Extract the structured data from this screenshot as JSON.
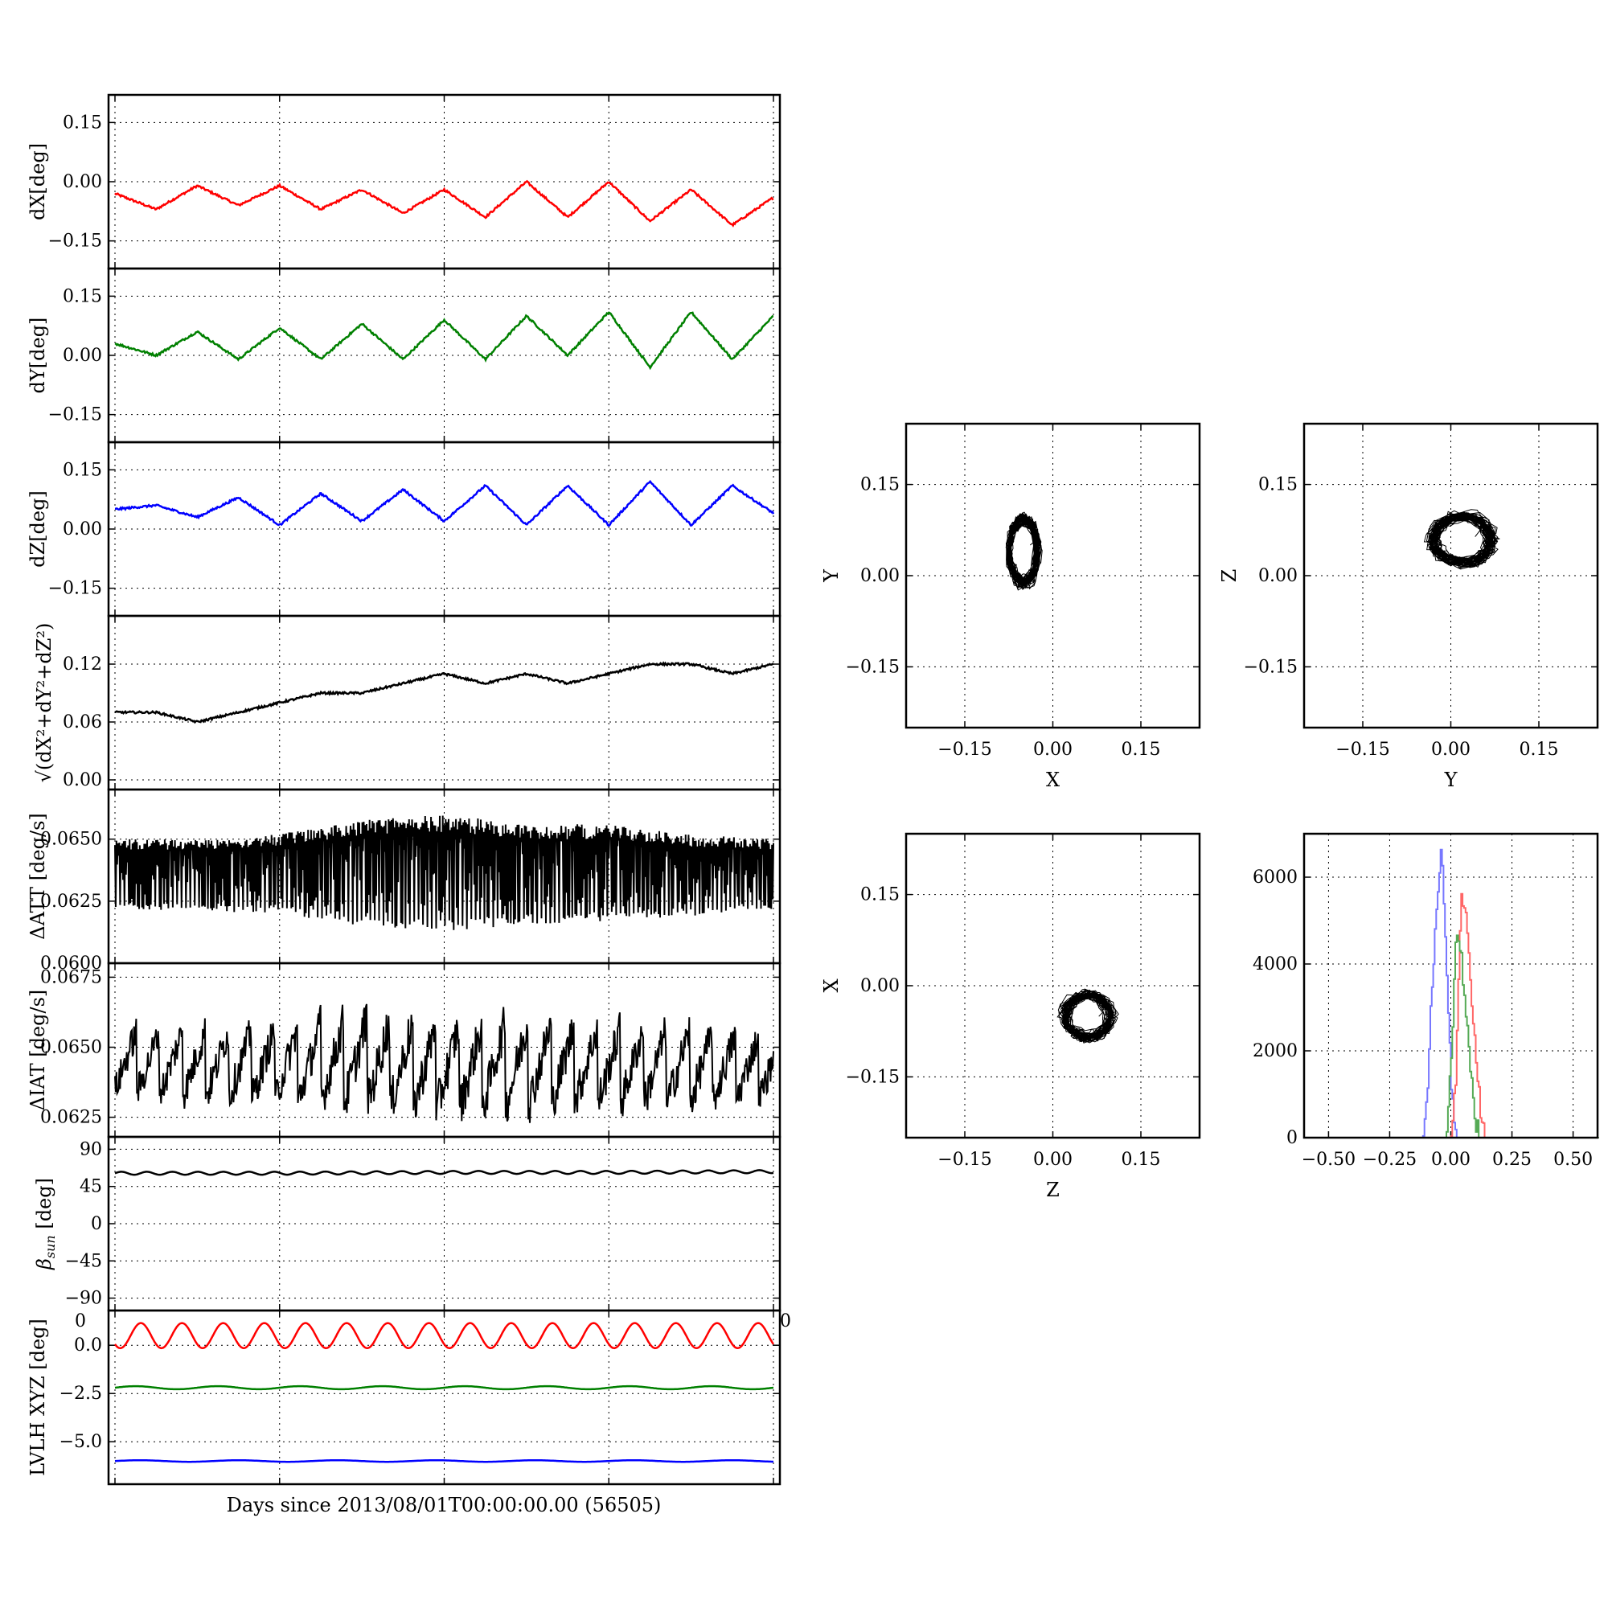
{
  "figure": {
    "xlabel": "Days since 2013/08/01T00:00:00.00 (56505)",
    "overflow_tick_left": "0",
    "overflow_tick_right": "0"
  },
  "chart_data": [
    {
      "type": "line",
      "ylabel": "dX[deg]",
      "ylim": [
        -0.22,
        0.22
      ],
      "yticks": [
        0.15,
        0.0,
        -0.15
      ],
      "ytick_labels": [
        "0.15",
        "0.00",
        "−0.15"
      ],
      "grid": true,
      "series": [
        {
          "color": "#ff0000",
          "x": [
            0,
            2.5,
            5,
            7.5,
            10,
            12.5,
            15,
            17.5,
            20,
            22.5,
            25,
            27.5,
            30,
            32.5,
            35,
            37.5,
            40
          ],
          "values": [
            -0.03,
            -0.07,
            -0.01,
            -0.06,
            -0.01,
            -0.07,
            -0.02,
            -0.08,
            -0.02,
            -0.09,
            0.0,
            -0.09,
            0.0,
            -0.1,
            -0.02,
            -0.11,
            -0.04
          ]
        }
      ]
    },
    {
      "type": "line",
      "ylabel": "dY[deg]",
      "ylim": [
        -0.22,
        0.22
      ],
      "yticks": [
        0.15,
        0.0,
        -0.15
      ],
      "ytick_labels": [
        "0.15",
        "0.00",
        "−0.15"
      ],
      "grid": true,
      "series": [
        {
          "color": "#008000",
          "x": [
            0,
            2.5,
            5,
            7.5,
            10,
            12.5,
            15,
            17.5,
            20,
            22.5,
            25,
            27.5,
            30,
            32.5,
            35,
            37.5,
            40
          ],
          "values": [
            0.03,
            0.0,
            0.06,
            -0.01,
            0.07,
            -0.01,
            0.08,
            -0.01,
            0.09,
            -0.01,
            0.1,
            0.0,
            0.11,
            -0.03,
            0.11,
            -0.01,
            0.1
          ]
        }
      ]
    },
    {
      "type": "line",
      "ylabel": "dZ[deg]",
      "ylim": [
        -0.22,
        0.22
      ],
      "yticks": [
        0.15,
        0.0,
        -0.15
      ],
      "ytick_labels": [
        "0.15",
        "0.00",
        "−0.15"
      ],
      "grid": true,
      "series": [
        {
          "color": "#0000ff",
          "x": [
            0,
            2.5,
            5,
            7.5,
            10,
            12.5,
            15,
            17.5,
            20,
            22.5,
            25,
            27.5,
            30,
            32.5,
            35,
            37.5,
            40
          ],
          "values": [
            0.05,
            0.06,
            0.03,
            0.08,
            0.01,
            0.09,
            0.02,
            0.1,
            0.02,
            0.11,
            0.01,
            0.11,
            0.01,
            0.12,
            0.01,
            0.11,
            0.04
          ]
        }
      ]
    },
    {
      "type": "line",
      "ylabel": "√(dX²+dY²+dZ²)",
      "ylim": [
        -0.01,
        0.17
      ],
      "yticks": [
        0.12,
        0.06,
        0.0
      ],
      "ytick_labels": [
        "0.12",
        "0.06",
        "0.00"
      ],
      "grid": true,
      "series": [
        {
          "color": "#000000",
          "x": [
            0,
            2.5,
            5,
            7.5,
            10,
            12.5,
            15,
            17.5,
            20,
            22.5,
            25,
            27.5,
            30,
            32.5,
            35,
            37.5,
            40
          ],
          "values": [
            0.07,
            0.07,
            0.06,
            0.07,
            0.08,
            0.09,
            0.09,
            0.1,
            0.11,
            0.1,
            0.11,
            0.1,
            0.11,
            0.12,
            0.12,
            0.11,
            0.12
          ]
        }
      ]
    },
    {
      "type": "line",
      "ylabel": "ΔATT [deg/s]",
      "ylim": [
        0.06,
        0.067
      ],
      "yticks": [
        0.065,
        0.0625,
        0.06
      ],
      "ytick_labels": [
        "0.0650",
        "0.0625",
        "0.0600"
      ],
      "grid": true,
      "series": [
        {
          "color": "#000000",
          "x": [
            0,
            5,
            10,
            15,
            20,
            25,
            30,
            35,
            40
          ],
          "values_upper": [
            0.065,
            0.065,
            0.0652,
            0.0658,
            0.066,
            0.0656,
            0.0656,
            0.0652,
            0.065
          ],
          "values_lower": [
            0.0622,
            0.0621,
            0.062,
            0.0615,
            0.0613,
            0.0615,
            0.0617,
            0.0619,
            0.0621
          ]
        }
      ]
    },
    {
      "type": "line",
      "ylabel": "ΔIAT [deg/s]",
      "ylim": [
        0.0618,
        0.068
      ],
      "yticks": [
        0.0675,
        0.065,
        0.0625
      ],
      "ytick_labels": [
        "0.0675",
        "0.0650",
        "0.0625"
      ],
      "grid": true,
      "series": [
        {
          "color": "#000000",
          "x": [
            0,
            5,
            10,
            15,
            20,
            25,
            30,
            35,
            40
          ],
          "values_upper": [
            0.0662,
            0.0663,
            0.0664,
            0.067,
            0.0667,
            0.0668,
            0.0665,
            0.0664,
            0.066
          ],
          "values_lower": [
            0.063,
            0.0628,
            0.0627,
            0.0624,
            0.0622,
            0.0624,
            0.0625,
            0.0625,
            0.0628
          ]
        }
      ]
    },
    {
      "type": "line",
      "ylabel": "βsun [deg]",
      "ylim": [
        -105,
        105
      ],
      "yticks": [
        90,
        45,
        0,
        -45,
        -90
      ],
      "ytick_labels": [
        "90",
        "45",
        "0",
        "−45",
        "−90"
      ],
      "grid": true,
      "series": [
        {
          "color": "#000000",
          "x": [
            0,
            10,
            20,
            30,
            40
          ],
          "values": [
            61,
            61,
            62,
            62,
            63
          ]
        }
      ]
    },
    {
      "type": "line",
      "ylabel": "LVLH XYZ [deg]",
      "ylim": [
        -7.2,
        1.8
      ],
      "yticks": [
        0.0,
        -2.5,
        -5.0
      ],
      "ytick_labels": [
        "0.0",
        "−2.5",
        "−5.0"
      ],
      "grid": true,
      "series": [
        {
          "color": "#ff0000",
          "x": [
            0,
            10,
            20,
            30,
            40
          ],
          "values": [
            0.5,
            0.5,
            0.5,
            0.5,
            0.5
          ]
        },
        {
          "color": "#008000",
          "x": [
            0,
            10,
            20,
            30,
            40
          ],
          "values": [
            -2.2,
            -2.2,
            -2.2,
            -2.2,
            -2.2
          ]
        },
        {
          "color": "#0000ff",
          "x": [
            0,
            10,
            20,
            30,
            40
          ],
          "values": [
            -6.0,
            -6.0,
            -6.0,
            -6.0,
            -6.0
          ]
        }
      ]
    },
    {
      "type": "scatter",
      "xlabel": "X",
      "ylabel": "Y",
      "xlim": [
        -0.25,
        0.25
      ],
      "ylim": [
        -0.25,
        0.25
      ],
      "ticks": [
        -0.15,
        0.0,
        0.15
      ],
      "tick_labels": [
        "−0.15",
        "0.00",
        "0.15"
      ],
      "grid": true,
      "cluster": {
        "center": [
          -0.05,
          0.04
        ],
        "half_width": [
          0.035,
          0.075
        ]
      }
    },
    {
      "type": "scatter",
      "xlabel": "Y",
      "ylabel": "Z",
      "xlim": [
        -0.25,
        0.25
      ],
      "ylim": [
        -0.25,
        0.25
      ],
      "ticks": [
        -0.15,
        0.0,
        0.15
      ],
      "tick_labels": [
        "−0.15",
        "0.00",
        "0.15"
      ],
      "grid": true,
      "cluster": {
        "center": [
          0.02,
          0.06
        ],
        "half_width": [
          0.07,
          0.055
        ]
      }
    },
    {
      "type": "scatter",
      "xlabel": "Z",
      "ylabel": "X",
      "xlim": [
        -0.25,
        0.25
      ],
      "ylim": [
        -0.25,
        0.25
      ],
      "ticks": [
        -0.15,
        0.0,
        0.15
      ],
      "tick_labels": [
        "−0.15",
        "0.00",
        "0.15"
      ],
      "grid": true,
      "cluster": {
        "center": [
          0.06,
          -0.05
        ],
        "half_width": [
          0.055,
          0.05
        ]
      }
    },
    {
      "type": "line",
      "subtype": "histogram",
      "xlim": [
        -0.6,
        0.6
      ],
      "ylim": [
        0,
        7000
      ],
      "xticks": [
        -0.5,
        -0.25,
        0.0,
        0.25,
        0.5
      ],
      "xtick_labels": [
        "−0.50",
        "−0.25",
        "0.00",
        "0.25",
        "0.50"
      ],
      "yticks": [
        0,
        2000,
        4000,
        6000
      ],
      "ytick_labels": [
        "0",
        "2000",
        "4000",
        "6000"
      ],
      "grid": true,
      "series": [
        {
          "color": "#7777ff",
          "x": [
            -0.6,
            -0.12,
            -0.1,
            -0.08,
            -0.06,
            -0.04,
            -0.02,
            0.0,
            0.02,
            0.6
          ],
          "values": [
            0,
            0,
            800,
            3500,
            5200,
            6800,
            4200,
            1000,
            0,
            0
          ]
        },
        {
          "color": "#ff6666",
          "x": [
            -0.6,
            0.0,
            0.02,
            0.04,
            0.06,
            0.08,
            0.1,
            0.12,
            0.14,
            0.6
          ],
          "values": [
            0,
            0,
            1500,
            5500,
            5000,
            3500,
            2000,
            600,
            0,
            0
          ]
        },
        {
          "color": "#55aa55",
          "x": [
            -0.6,
            -0.02,
            0.0,
            0.02,
            0.04,
            0.06,
            0.08,
            0.1,
            0.12,
            0.6
          ],
          "values": [
            0,
            0,
            2000,
            4500,
            4200,
            3000,
            1500,
            300,
            0,
            0
          ]
        }
      ]
    }
  ]
}
